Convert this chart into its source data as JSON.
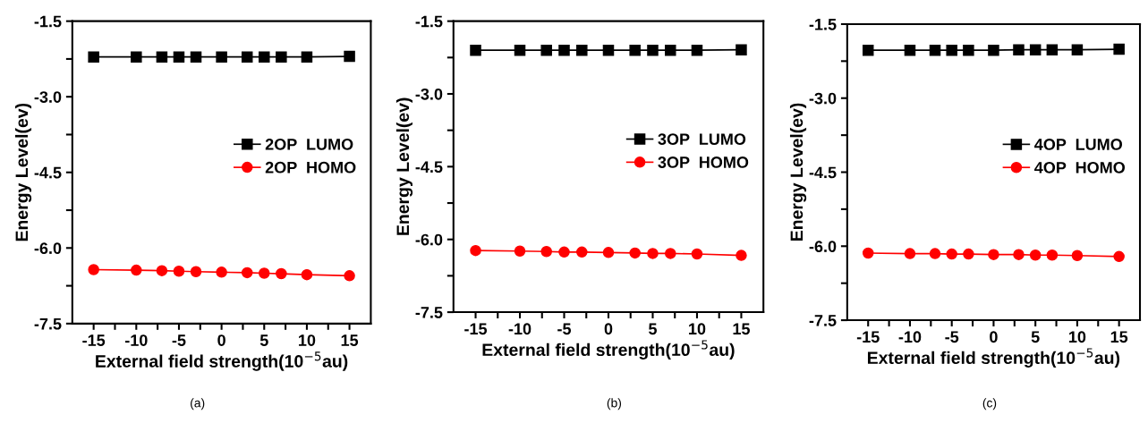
{
  "chart_data": [
    {
      "type": "line",
      "xlabel": "External field strength(10$^{−5}$au)",
      "ylabel": "Energy Level(ev)",
      "annotations": [
        "(a)"
      ],
      "x": [
        -15,
        -10,
        -7,
        -5,
        -3,
        0,
        3,
        5,
        7,
        10,
        15
      ],
      "xlim": [
        -17.5,
        17.5
      ],
      "xticks": [
        -15,
        {
          "value": -12.5,
          "label": null
        },
        -10,
        {
          "value": -7.5,
          "label": null
        },
        -5,
        {
          "value": -2.5,
          "label": null
        },
        0,
        {
          "value": 2.5,
          "label": null
        },
        5,
        {
          "value": 7.5,
          "label": null
        },
        10,
        {
          "value": 12.5,
          "label": null
        },
        15
      ],
      "ylim": [
        -7.5,
        -1.5
      ],
      "yticks": [
        -7.5,
        {
          "value": -6.75,
          "label": null
        },
        {
          "value": -6,
          "label": "-6.0"
        },
        {
          "value": -5.25,
          "label": null
        },
        -4.5,
        {
          "value": -3.75,
          "label": null
        },
        {
          "value": -3,
          "label": "-3.0"
        },
        {
          "value": -2.25,
          "label": null
        },
        -1.5
      ],
      "legend": "right",
      "grid": false,
      "series": [
        {
          "name": "2OP  LUMO",
          "color": "#000000",
          "marker": "square",
          "values": [
            -2.21,
            -2.21,
            -2.21,
            -2.21,
            -2.21,
            -2.21,
            -2.21,
            -2.21,
            -2.21,
            -2.21,
            -2.2
          ]
        },
        {
          "name": "2OP  HOMO",
          "color": "#ff0000",
          "marker": "circle",
          "values": [
            -6.43,
            -6.44,
            -6.45,
            -6.46,
            -6.47,
            -6.48,
            -6.49,
            -6.5,
            -6.51,
            -6.53,
            -6.55
          ]
        }
      ]
    },
    {
      "type": "line",
      "xlabel": "External field strength(10$^{−5}$au)",
      "ylabel": "Energy Level(ev)",
      "annotations": [
        "(b)"
      ],
      "x": [
        -15,
        -10,
        -7,
        -5,
        -3,
        0,
        3,
        5,
        7,
        10,
        15
      ],
      "xlim": [
        -17.5,
        17.5
      ],
      "xticks": [
        -15,
        {
          "value": -12.5,
          "label": null
        },
        -10,
        {
          "value": -7.5,
          "label": null
        },
        -5,
        {
          "value": -2.5,
          "label": null
        },
        0,
        {
          "value": 2.5,
          "label": null
        },
        5,
        {
          "value": 7.5,
          "label": null
        },
        10,
        {
          "value": 12.5,
          "label": null
        },
        15
      ],
      "ylim": [
        -7.5,
        -1.5
      ],
      "yticks": [
        -7.5,
        {
          "value": -6.75,
          "label": null
        },
        {
          "value": -6,
          "label": "-6.0"
        },
        {
          "value": -5.25,
          "label": null
        },
        -4.5,
        {
          "value": -3.75,
          "label": null
        },
        {
          "value": -3,
          "label": "-3.0"
        },
        {
          "value": -2.25,
          "label": null
        },
        -1.5
      ],
      "legend": "right",
      "grid": false,
      "series": [
        {
          "name": "3OP  LUMO",
          "color": "#000000",
          "marker": "square",
          "values": [
            -2.1,
            -2.1,
            -2.1,
            -2.1,
            -2.1,
            -2.1,
            -2.1,
            -2.1,
            -2.1,
            -2.1,
            -2.09
          ]
        },
        {
          "name": "3OP  HOMO",
          "color": "#ff0000",
          "marker": "circle",
          "values": [
            -6.23,
            -6.24,
            -6.25,
            -6.26,
            -6.26,
            -6.27,
            -6.28,
            -6.29,
            -6.29,
            -6.3,
            -6.33
          ]
        }
      ]
    },
    {
      "type": "line",
      "xlabel": "External field strength(10$^{−5}$au)",
      "ylabel": "Energy Level(ev)",
      "annotations": [
        "(c)"
      ],
      "x": [
        -15,
        -10,
        -7,
        -5,
        -3,
        0,
        3,
        5,
        7,
        10,
        15
      ],
      "xlim": [
        -17.5,
        17.5
      ],
      "xticks": [
        -15,
        {
          "value": -12.5,
          "label": null
        },
        -10,
        {
          "value": -7.5,
          "label": null
        },
        -5,
        {
          "value": -2.5,
          "label": null
        },
        0,
        {
          "value": 2.5,
          "label": null
        },
        5,
        {
          "value": 7.5,
          "label": null
        },
        10,
        {
          "value": 12.5,
          "label": null
        },
        15
      ],
      "ylim": [
        -7.5,
        -1.5
      ],
      "yticks": [
        -7.5,
        {
          "value": -6.75,
          "label": null
        },
        {
          "value": -6,
          "label": "-6.0"
        },
        {
          "value": -5.25,
          "label": null
        },
        -4.5,
        {
          "value": -3.75,
          "label": null
        },
        {
          "value": -3,
          "label": "-3.0"
        },
        {
          "value": -2.25,
          "label": null
        },
        -1.5
      ],
      "legend": "right",
      "grid": false,
      "series": [
        {
          "name": "4OP  LUMO",
          "color": "#000000",
          "marker": "square",
          "values": [
            -2.03,
            -2.03,
            -2.03,
            -2.03,
            -2.03,
            -2.03,
            -2.02,
            -2.02,
            -2.02,
            -2.02,
            -2.01
          ]
        },
        {
          "name": "4OP  HOMO",
          "color": "#ff0000",
          "marker": "circle",
          "values": [
            -6.14,
            -6.15,
            -6.15,
            -6.16,
            -6.16,
            -6.17,
            -6.17,
            -6.18,
            -6.18,
            -6.19,
            -6.21
          ]
        }
      ]
    }
  ]
}
